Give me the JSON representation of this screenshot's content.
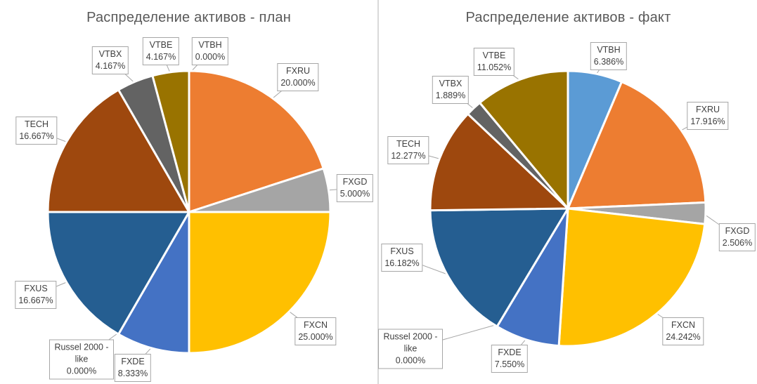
{
  "chart_data": [
    {
      "type": "pie",
      "title": "Распределение активов - план",
      "slices": [
        {
          "name": "FXRU",
          "value": 20.0,
          "label": "20.000%",
          "color": "#ed7d31"
        },
        {
          "name": "FXGD",
          "value": 5.0,
          "label": "5.000%",
          "color": "#a5a5a5"
        },
        {
          "name": "FXCN",
          "value": 25.0,
          "label": "25.000%",
          "color": "#ffc000"
        },
        {
          "name": "FXDE",
          "value": 8.333,
          "label": "8.333%",
          "color": "#4472c4"
        },
        {
          "name": "Russel 2000 - like",
          "value": 0.0,
          "label": "0.000%",
          "color": "#70ad47"
        },
        {
          "name": "FXUS",
          "value": 16.667,
          "label": "16.667%",
          "color": "#255e91"
        },
        {
          "name": "TECH",
          "value": 16.667,
          "label": "16.667%",
          "color": "#9e480e"
        },
        {
          "name": "VTBX",
          "value": 4.167,
          "label": "4.167%",
          "color": "#636363"
        },
        {
          "name": "VTBE",
          "value": 4.167,
          "label": "4.167%",
          "color": "#997300"
        },
        {
          "name": "VTBH",
          "value": 0.0,
          "label": "0.000%",
          "color": "#5b9bd5"
        }
      ]
    },
    {
      "type": "pie",
      "title": "Распределение активов - факт",
      "slices": [
        {
          "name": "VTBH",
          "value": 6.386,
          "label": "6.386%",
          "color": "#5b9bd5"
        },
        {
          "name": "FXRU",
          "value": 17.916,
          "label": "17.916%",
          "color": "#ed7d31"
        },
        {
          "name": "FXGD",
          "value": 2.506,
          "label": "2.506%",
          "color": "#a5a5a5"
        },
        {
          "name": "FXCN",
          "value": 24.242,
          "label": "24.242%",
          "color": "#ffc000"
        },
        {
          "name": "FXDE",
          "value": 7.55,
          "label": "7.550%",
          "color": "#4472c4"
        },
        {
          "name": "Russel 2000 - like",
          "value": 0.0,
          "label": "0.000%",
          "color": "#70ad47"
        },
        {
          "name": "FXUS",
          "value": 16.182,
          "label": "16.182%",
          "color": "#255e91"
        },
        {
          "name": "TECH",
          "value": 12.277,
          "label": "12.277%",
          "color": "#9e480e"
        },
        {
          "name": "VTBX",
          "value": 1.889,
          "label": "1.889%",
          "color": "#636363"
        },
        {
          "name": "VTBE",
          "value": 11.052,
          "label": "11.052%",
          "color": "#997300"
        }
      ]
    }
  ]
}
